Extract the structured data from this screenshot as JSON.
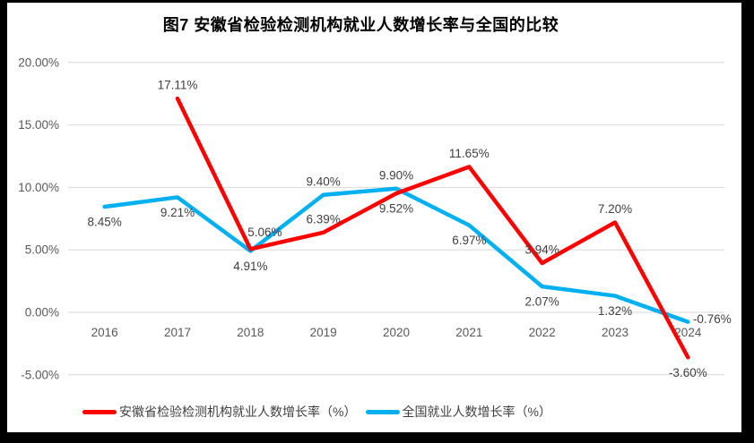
{
  "frame": {
    "border_color": "#000000",
    "page_background": "#FFFFFF"
  },
  "chart_data": {
    "type": "line",
    "title": "图7 安徽省检验检测机构就业人数增长率与全国的比较",
    "categories": [
      "2016",
      "2017",
      "2018",
      "2019",
      "2020",
      "2021",
      "2022",
      "2023",
      "2024"
    ],
    "series": [
      {
        "name": "安徽省检验检测机构就业人数增长率（%）",
        "color": "#FF0000",
        "values": [
          null,
          17.11,
          5.06,
          6.39,
          9.52,
          11.65,
          3.94,
          7.2,
          -3.6
        ],
        "labels": [
          null,
          "17.11%",
          "5.06%",
          "6.39%",
          "9.52%",
          "11.65%",
          "3.94%",
          "7.20%",
          "-3.60%"
        ],
        "label_positions": [
          null,
          "above",
          "above-right",
          "above",
          "below",
          "above",
          "above",
          "above",
          "below"
        ]
      },
      {
        "name": "全国就业人数增长率（%）",
        "color": "#00B0F0",
        "values": [
          8.45,
          9.21,
          4.91,
          9.4,
          9.9,
          6.97,
          2.07,
          1.32,
          -0.76
        ],
        "labels": [
          "8.45%",
          "9.21%",
          "4.91%",
          "9.40%",
          "9.90%",
          "6.97%",
          "2.07%",
          "1.32%",
          "-0.76%"
        ],
        "label_positions": [
          "below",
          "below",
          "below",
          "above",
          "above",
          "below",
          "below",
          "below",
          "right"
        ]
      }
    ],
    "y_ticks": {
      "values": [
        20,
        15,
        10,
        5,
        0,
        -5
      ],
      "labels": [
        "20.00%",
        "15.00%",
        "10.00%",
        "5.00%",
        "0.00%",
        "-5.00%"
      ]
    },
    "ylim": [
      -5,
      20
    ],
    "grid": true,
    "legend_position": "bottom",
    "style": {
      "gridline_color": "#D9D9D9",
      "axis_label_color": "#595959",
      "data_label_color": "#404040",
      "background": "#FFFFFF"
    }
  }
}
